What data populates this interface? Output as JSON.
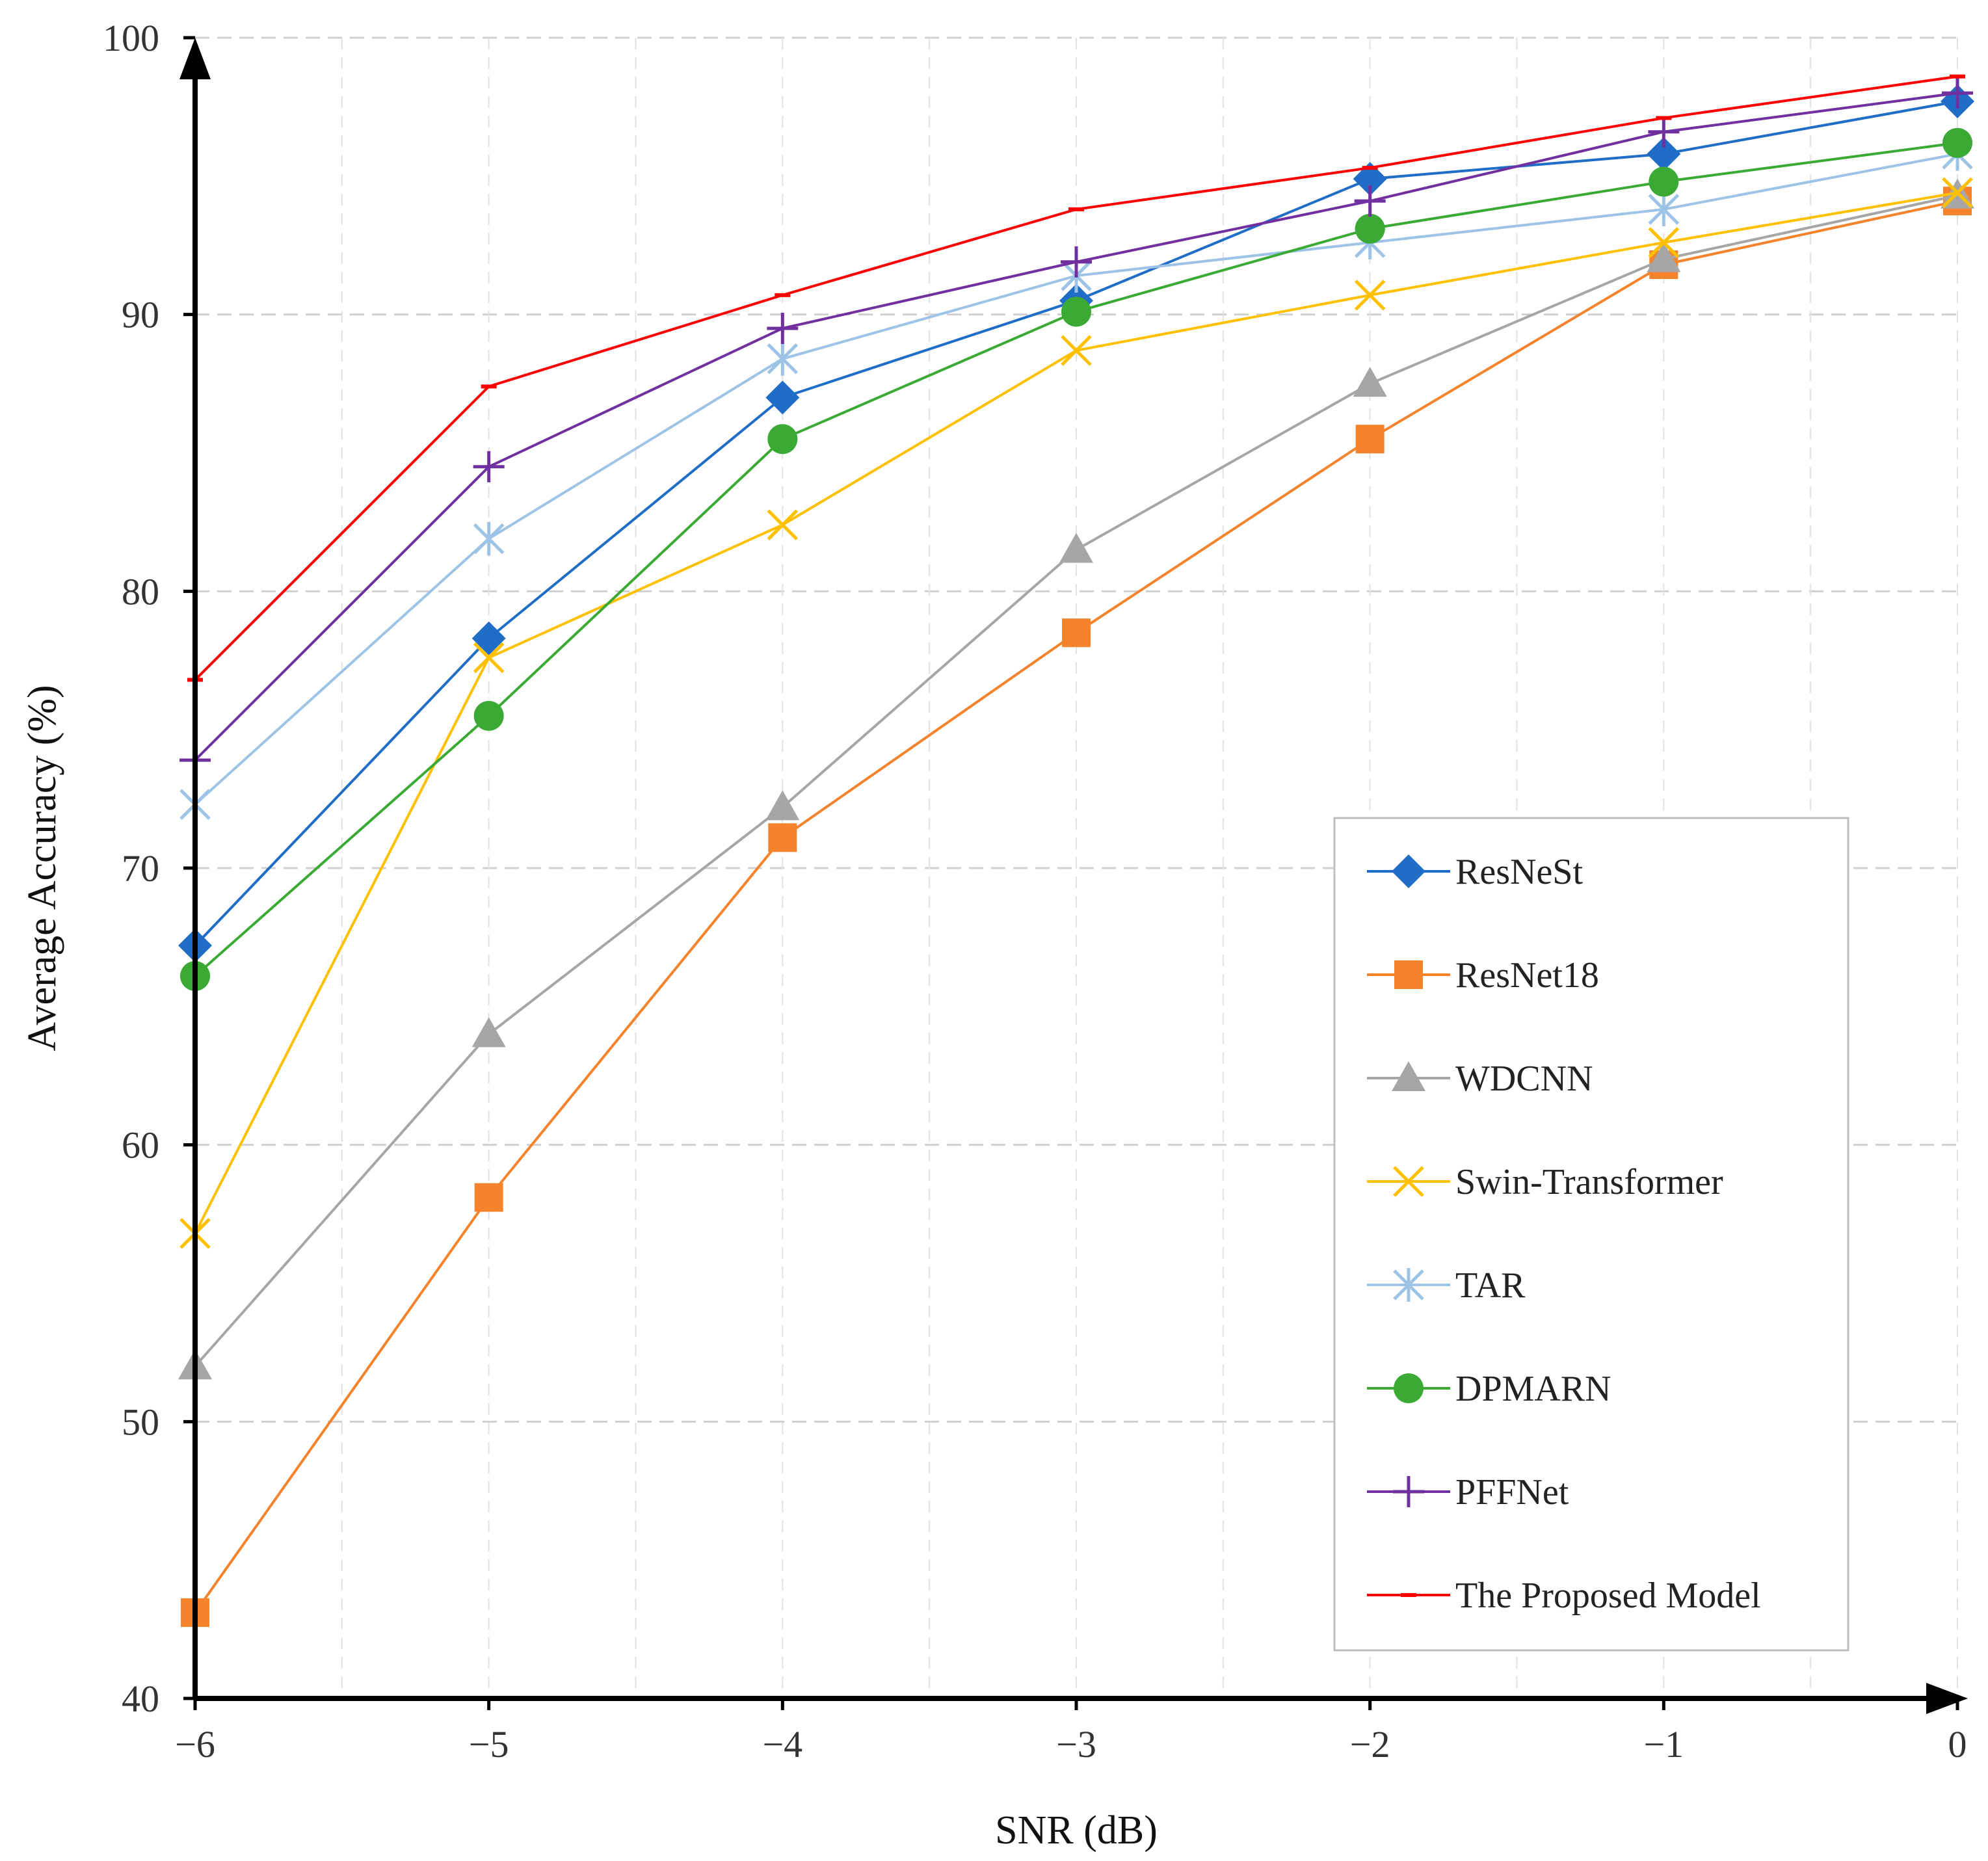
{
  "chart_data": {
    "type": "line",
    "xlabel": "SNR (dB)",
    "ylabel": "Average Accuracy (%)",
    "x": [
      -6,
      -5,
      -4,
      -3,
      -2,
      -1,
      0
    ],
    "x_tick_labels": [
      "−6",
      "−5",
      "−4",
      "−3",
      "−2",
      "−1",
      "0"
    ],
    "xlim": [
      -6,
      0
    ],
    "ylim": [
      40,
      100
    ],
    "y_ticks": [
      40,
      50,
      60,
      70,
      80,
      90,
      100
    ],
    "y_tick_labels": [
      "40",
      "50",
      "60",
      "70",
      "80",
      "90",
      "100"
    ],
    "grid": "dashed horizontal and vertical",
    "legend_position": "bottom-right",
    "series": [
      {
        "name": "ResNeSt",
        "marker": "diamond",
        "color": "#1F6DC6",
        "values": [
          67.2,
          78.3,
          87.0,
          90.5,
          94.9,
          95.8,
          97.7
        ]
      },
      {
        "name": "ResNet18",
        "marker": "square",
        "color": "#F5832B",
        "values": [
          43.1,
          58.1,
          71.1,
          78.5,
          85.5,
          91.8,
          94.1
        ]
      },
      {
        "name": "WDCNN",
        "marker": "triangle",
        "color": "#A6A6A6",
        "values": [
          52.0,
          64.0,
          72.2,
          81.5,
          87.5,
          92.0,
          94.3
        ]
      },
      {
        "name": "Swin-Transformer",
        "marker": "x",
        "color": "#FFC000",
        "values": [
          56.8,
          77.6,
          82.4,
          88.7,
          90.7,
          92.6,
          94.4
        ]
      },
      {
        "name": "TAR",
        "marker": "asterisk",
        "color": "#9DC3E6",
        "values": [
          72.3,
          81.9,
          88.4,
          91.4,
          92.6,
          93.8,
          95.8
        ]
      },
      {
        "name": "DPMARN",
        "marker": "circle",
        "color": "#3AAA35",
        "values": [
          66.1,
          75.5,
          85.5,
          90.1,
          93.1,
          94.8,
          96.2
        ]
      },
      {
        "name": "PFFNet",
        "marker": "plus",
        "color": "#7030A0",
        "values": [
          73.9,
          84.5,
          89.5,
          91.9,
          94.1,
          96.6,
          98.0
        ]
      },
      {
        "name": "The Proposed Model",
        "marker": "dash",
        "color": "#FF0000",
        "values": [
          76.8,
          87.4,
          90.7,
          93.8,
          95.3,
          97.1,
          98.6
        ]
      }
    ]
  }
}
